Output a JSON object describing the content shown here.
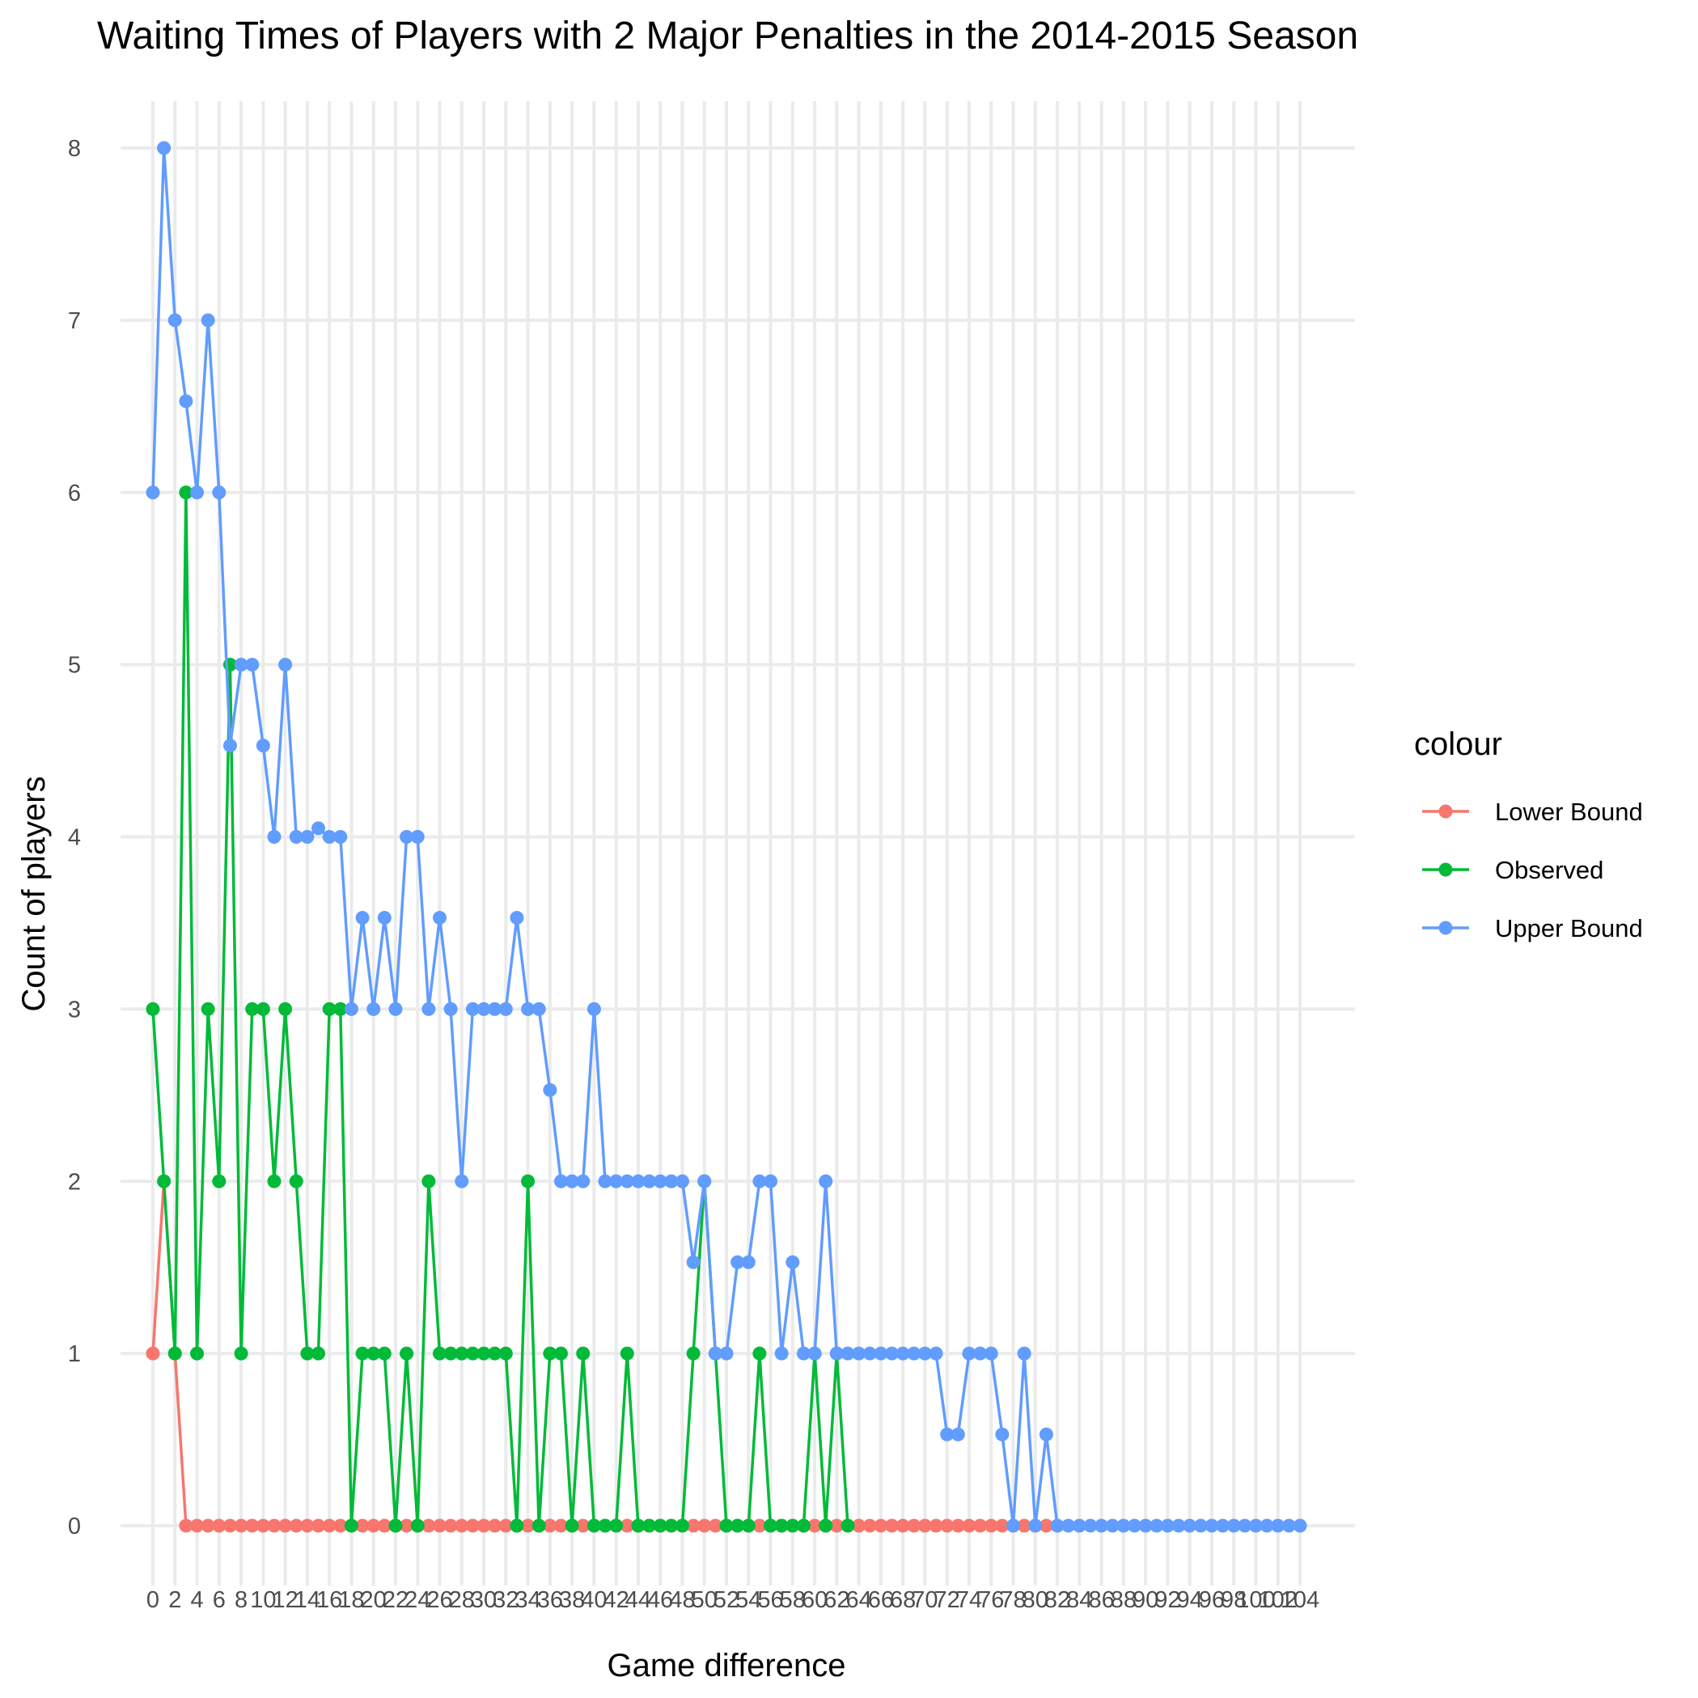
{
  "chart_data": {
    "type": "line",
    "title": "Waiting Times of Players with 2 Major Penalties in the 2014-2015 Season",
    "xlabel": "Game difference",
    "ylabel": "Count of players",
    "xlim": [
      0,
      104
    ],
    "ylim": [
      0,
      8
    ],
    "x_ticks": [
      0,
      2,
      4,
      6,
      8,
      10,
      12,
      14,
      16,
      18,
      20,
      22,
      24,
      26,
      28,
      30,
      32,
      34,
      36,
      38,
      40,
      42,
      44,
      46,
      48,
      50,
      52,
      54,
      56,
      58,
      60,
      62,
      64,
      66,
      68,
      70,
      72,
      74,
      76,
      78,
      80,
      82,
      84,
      86,
      88,
      90,
      92,
      94,
      96,
      98,
      100,
      102,
      104
    ],
    "x_tick_labels": [
      "0",
      "2",
      "4",
      "6",
      "8",
      "10",
      "12",
      "14",
      "16",
      "18",
      "20",
      "22",
      "24",
      "26",
      "28",
      "30",
      "32",
      "34",
      "36",
      "38",
      "40",
      "42",
      "44",
      "46",
      "48",
      "50",
      "52",
      "54",
      "56",
      "58",
      "60",
      "62",
      "64",
      "66",
      "68",
      "70",
      "72",
      "74",
      "76",
      "78",
      "80",
      "82",
      "84",
      "86",
      "88",
      "90",
      "92",
      "94",
      "96",
      "98",
      "100",
      "102",
      "104"
    ],
    "y_ticks": [
      0,
      1,
      2,
      3,
      4,
      5,
      6,
      7,
      8
    ],
    "y_tick_labels": [
      "0",
      "1",
      "2",
      "3",
      "4",
      "5",
      "6",
      "7",
      "8"
    ],
    "grid": true,
    "legend": {
      "title": "colour",
      "position": "right",
      "entries": [
        "Lower Bound",
        "Observed",
        "Upper Bound"
      ]
    },
    "series": [
      {
        "name": "Lower Bound",
        "color": "#F8766D",
        "x": [
          0,
          1,
          2,
          3,
          4,
          5,
          6,
          7,
          8,
          9,
          10,
          11,
          12,
          13,
          14,
          15,
          16,
          17,
          18,
          19,
          20,
          21,
          22,
          23,
          24,
          25,
          26,
          27,
          28,
          29,
          30,
          31,
          32,
          33,
          34,
          35,
          36,
          37,
          38,
          39,
          40,
          41,
          42,
          43,
          44,
          45,
          46,
          47,
          48,
          49,
          50,
          51,
          52,
          53,
          54,
          55,
          56,
          57,
          58,
          59,
          60,
          61,
          62,
          63,
          64,
          65,
          66,
          67,
          68,
          69,
          70,
          71,
          72,
          73,
          74,
          75,
          76,
          77,
          78,
          79,
          80,
          81,
          82
        ],
        "y": [
          1,
          2,
          1,
          0,
          0,
          0,
          0,
          0,
          0,
          0,
          0,
          0,
          0,
          0,
          0,
          0,
          0,
          0,
          0,
          0,
          0,
          0,
          0,
          0,
          0,
          0,
          0,
          0,
          0,
          0,
          0,
          0,
          0,
          0,
          0,
          0,
          0,
          0,
          0,
          0,
          0,
          0,
          0,
          0,
          0,
          0,
          0,
          0,
          0,
          0,
          0,
          0,
          0,
          0,
          0,
          0,
          0,
          0,
          0,
          0,
          0,
          0,
          0,
          0,
          0,
          0,
          0,
          0,
          0,
          0,
          0,
          0,
          0,
          0,
          0,
          0,
          0,
          0,
          0,
          0,
          0,
          0,
          0
        ]
      },
      {
        "name": "Observed",
        "color": "#00BA38",
        "x": [
          0,
          1,
          2,
          3,
          4,
          5,
          6,
          7,
          8,
          9,
          10,
          11,
          12,
          13,
          14,
          15,
          16,
          17,
          18,
          19,
          20,
          21,
          22,
          23,
          24,
          25,
          26,
          27,
          28,
          29,
          30,
          31,
          32,
          33,
          34,
          35,
          36,
          37,
          38,
          39,
          40,
          41,
          42,
          43,
          44,
          45,
          46,
          47,
          48,
          49,
          50,
          51,
          52,
          53,
          54,
          55,
          56,
          57,
          58,
          59,
          60,
          61,
          62,
          63
        ],
        "y": [
          3,
          2,
          1,
          6,
          1,
          3,
          2,
          5,
          1,
          3,
          3,
          2,
          3,
          2,
          1,
          1,
          3,
          3,
          0,
          1,
          1,
          1,
          0,
          1,
          0,
          2,
          1,
          1,
          1,
          1,
          1,
          1,
          1,
          0,
          2,
          0,
          1,
          1,
          0,
          1,
          0,
          0,
          0,
          1,
          0,
          0,
          0,
          0,
          0,
          1,
          2,
          1,
          0,
          0,
          0,
          1,
          0,
          0,
          0,
          0,
          1,
          0,
          1,
          0
        ]
      },
      {
        "name": "Upper Bound",
        "color": "#619CFF",
        "x": [
          0,
          1,
          2,
          3,
          4,
          5,
          6,
          7,
          8,
          9,
          10,
          11,
          12,
          13,
          14,
          15,
          16,
          17,
          18,
          19,
          20,
          21,
          22,
          23,
          24,
          25,
          26,
          27,
          28,
          29,
          30,
          31,
          32,
          33,
          34,
          35,
          36,
          37,
          38,
          39,
          40,
          41,
          42,
          43,
          44,
          45,
          46,
          47,
          48,
          49,
          50,
          51,
          52,
          53,
          54,
          55,
          56,
          57,
          58,
          59,
          60,
          61,
          62,
          63,
          64,
          65,
          66,
          67,
          68,
          69,
          70,
          71,
          72,
          73,
          74,
          75,
          76,
          77,
          78,
          79,
          80,
          81,
          82,
          83,
          84,
          85,
          86,
          87,
          88,
          89,
          90,
          91,
          92,
          93,
          94,
          95,
          96,
          97,
          98,
          99,
          100,
          101,
          102,
          103,
          104
        ],
        "y": [
          6,
          8,
          7,
          6.53,
          6,
          7,
          6,
          4.53,
          5,
          5,
          4.53,
          4,
          5,
          4,
          4,
          4.05,
          4,
          4,
          3,
          3.53,
          3,
          3.53,
          3,
          4,
          4,
          3,
          3.53,
          3,
          2,
          3,
          3,
          3,
          3,
          3.53,
          3,
          3,
          2.53,
          2,
          2,
          2,
          3,
          2,
          2,
          2,
          2,
          2,
          2,
          2,
          2,
          1.53,
          2,
          1,
          1,
          1.53,
          1.53,
          2,
          2,
          1,
          1.53,
          1,
          1,
          2,
          1,
          1,
          1,
          1,
          1,
          1,
          1,
          1,
          1,
          1,
          0.53,
          0.53,
          1,
          1,
          1,
          0.53,
          0,
          1,
          0,
          0.53,
          0,
          0,
          0,
          0,
          0,
          0,
          0,
          0,
          0,
          0,
          0,
          0,
          0,
          0,
          0,
          0,
          0,
          0,
          0,
          0,
          0,
          0,
          0
        ]
      }
    ]
  }
}
